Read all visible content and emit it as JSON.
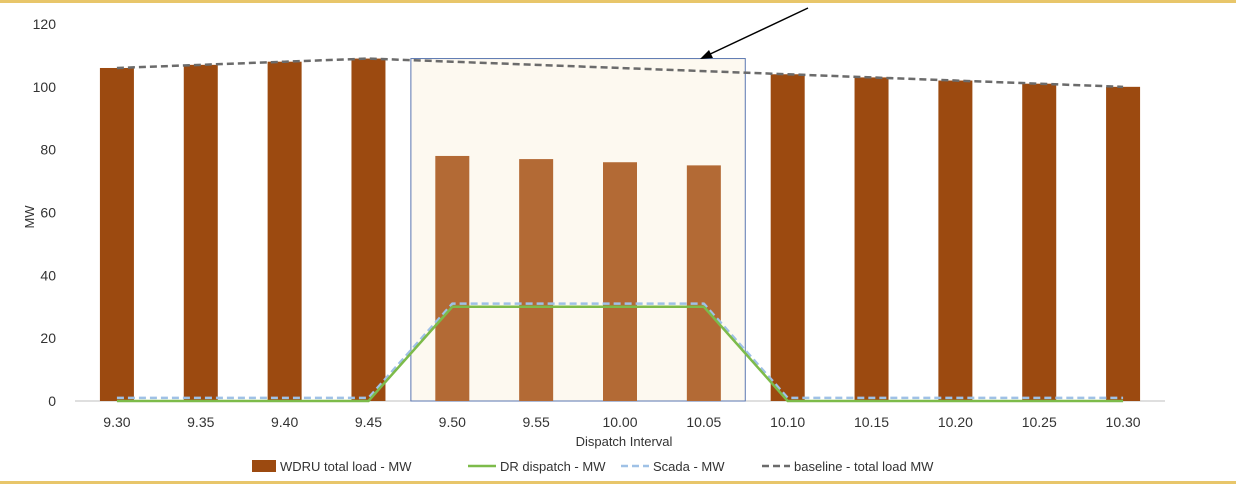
{
  "chart_data": {
    "type": "bar",
    "categories": [
      "9.30",
      "9.35",
      "9.40",
      "9.45",
      "9.50",
      "9.55",
      "10.00",
      "10.05",
      "10.10",
      "10.15",
      "10.20",
      "10.25",
      "10.30"
    ],
    "series": [
      {
        "name": "WDRU total load - MW",
        "kind": "bar",
        "values": [
          106,
          107,
          108,
          109,
          78,
          77,
          76,
          75,
          104,
          103,
          102,
          101,
          100
        ]
      },
      {
        "name": "DR dispatch - MW",
        "kind": "line",
        "values": [
          0,
          0,
          0,
          0,
          30,
          30,
          30,
          30,
          0,
          0,
          0,
          0,
          0
        ]
      },
      {
        "name": "Scada - MW",
        "kind": "line-dashed",
        "values": [
          1,
          1,
          1,
          1,
          31,
          31,
          31,
          31,
          1,
          1,
          1,
          1,
          1
        ]
      },
      {
        "name": "baseline - total load MW",
        "kind": "line-dashed",
        "values": [
          106,
          107,
          108,
          109,
          108,
          107,
          106,
          105,
          104,
          103,
          102,
          101,
          100
        ]
      }
    ],
    "highlight": {
      "from_category": "9.50",
      "to_category": "10.05",
      "bar_color": "#b36a35",
      "fill": "#fdf9f0",
      "border": "#5a76b0"
    },
    "yticks": [
      0,
      20,
      40,
      60,
      80,
      100,
      120
    ],
    "ylim": [
      0,
      120
    ],
    "xlabel": "Dispatch Interval",
    "ylabel": "MW",
    "legend_position": "bottom",
    "colors": {
      "bar": "#9c4a10",
      "dr": "#7dbb4a",
      "scada": "#9fc1e6",
      "baseline": "#6b6b6b",
      "grid": "#d9d9d9",
      "axis": "#bfbfbf",
      "arrow": "#000000"
    }
  }
}
